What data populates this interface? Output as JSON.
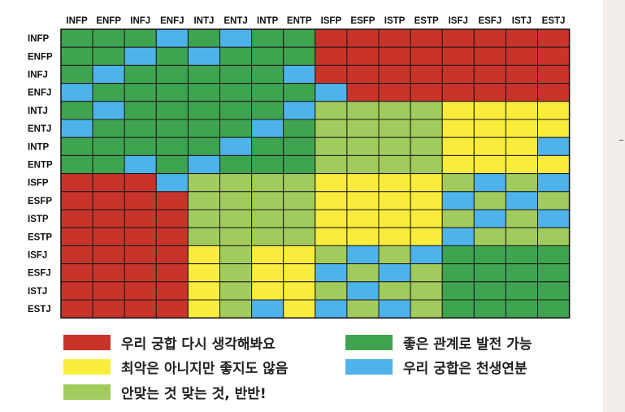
{
  "chart_data": {
    "type": "heatmap",
    "categories": [
      "INFP",
      "ENFP",
      "INFJ",
      "ENFJ",
      "INTJ",
      "ENTJ",
      "INTP",
      "ENTP",
      "ISFP",
      "ESFP",
      "ISTP",
      "ESTP",
      "ISFJ",
      "ESFJ",
      "ISTJ",
      "ESTJ"
    ],
    "colors": {
      "R": "#c8342a",
      "Y": "#f9ec3d",
      "L": "#a1cb5d",
      "G": "#3fa44f",
      "B": "#4db3ea"
    },
    "matrix": [
      [
        "G",
        "G",
        "G",
        "B",
        "G",
        "B",
        "G",
        "G",
        "R",
        "R",
        "R",
        "R",
        "R",
        "R",
        "R",
        "R"
      ],
      [
        "G",
        "G",
        "B",
        "G",
        "B",
        "G",
        "G",
        "G",
        "R",
        "R",
        "R",
        "R",
        "R",
        "R",
        "R",
        "R"
      ],
      [
        "G",
        "B",
        "G",
        "G",
        "G",
        "G",
        "G",
        "B",
        "R",
        "R",
        "R",
        "R",
        "R",
        "R",
        "R",
        "R"
      ],
      [
        "B",
        "G",
        "G",
        "G",
        "G",
        "G",
        "G",
        "G",
        "B",
        "R",
        "R",
        "R",
        "R",
        "R",
        "R",
        "R"
      ],
      [
        "G",
        "B",
        "G",
        "G",
        "G",
        "G",
        "G",
        "B",
        "L",
        "L",
        "L",
        "L",
        "Y",
        "Y",
        "Y",
        "Y"
      ],
      [
        "B",
        "G",
        "G",
        "G",
        "G",
        "G",
        "B",
        "G",
        "L",
        "L",
        "L",
        "L",
        "Y",
        "Y",
        "Y",
        "Y"
      ],
      [
        "G",
        "G",
        "G",
        "G",
        "G",
        "B",
        "G",
        "G",
        "L",
        "L",
        "L",
        "L",
        "Y",
        "Y",
        "Y",
        "B"
      ],
      [
        "G",
        "G",
        "B",
        "G",
        "B",
        "G",
        "G",
        "G",
        "L",
        "L",
        "L",
        "L",
        "Y",
        "Y",
        "Y",
        "Y"
      ],
      [
        "R",
        "R",
        "R",
        "B",
        "L",
        "L",
        "L",
        "L",
        "Y",
        "Y",
        "Y",
        "Y",
        "L",
        "B",
        "L",
        "B"
      ],
      [
        "R",
        "R",
        "R",
        "R",
        "L",
        "L",
        "L",
        "L",
        "Y",
        "Y",
        "Y",
        "Y",
        "B",
        "L",
        "B",
        "L"
      ],
      [
        "R",
        "R",
        "R",
        "R",
        "L",
        "L",
        "L",
        "L",
        "Y",
        "Y",
        "Y",
        "Y",
        "L",
        "B",
        "L",
        "B"
      ],
      [
        "R",
        "R",
        "R",
        "R",
        "L",
        "L",
        "L",
        "L",
        "Y",
        "Y",
        "Y",
        "Y",
        "B",
        "L",
        "L",
        "L"
      ],
      [
        "R",
        "R",
        "R",
        "R",
        "Y",
        "L",
        "Y",
        "Y",
        "L",
        "B",
        "L",
        "B",
        "G",
        "G",
        "G",
        "G"
      ],
      [
        "R",
        "R",
        "R",
        "R",
        "Y",
        "L",
        "Y",
        "Y",
        "B",
        "L",
        "B",
        "L",
        "G",
        "G",
        "G",
        "G"
      ],
      [
        "R",
        "R",
        "R",
        "R",
        "Y",
        "L",
        "Y",
        "Y",
        "L",
        "B",
        "L",
        "L",
        "G",
        "G",
        "G",
        "G"
      ],
      [
        "R",
        "R",
        "R",
        "R",
        "Y",
        "L",
        "B",
        "Y",
        "B",
        "L",
        "B",
        "L",
        "G",
        "G",
        "G",
        "G"
      ]
    ]
  },
  "legend": [
    {
      "key": "R",
      "label": "우리 궁합 다시 생각해봐요"
    },
    {
      "key": "G",
      "label": "좋은 관계로 발전 가능"
    },
    {
      "key": "Y",
      "label": "최악은 아니지만 좋지도 않음"
    },
    {
      "key": "B",
      "label": "우리 궁합은 천생연분"
    },
    {
      "key": "L",
      "label": "안맞는 것 맞는 것, 반반!"
    }
  ]
}
